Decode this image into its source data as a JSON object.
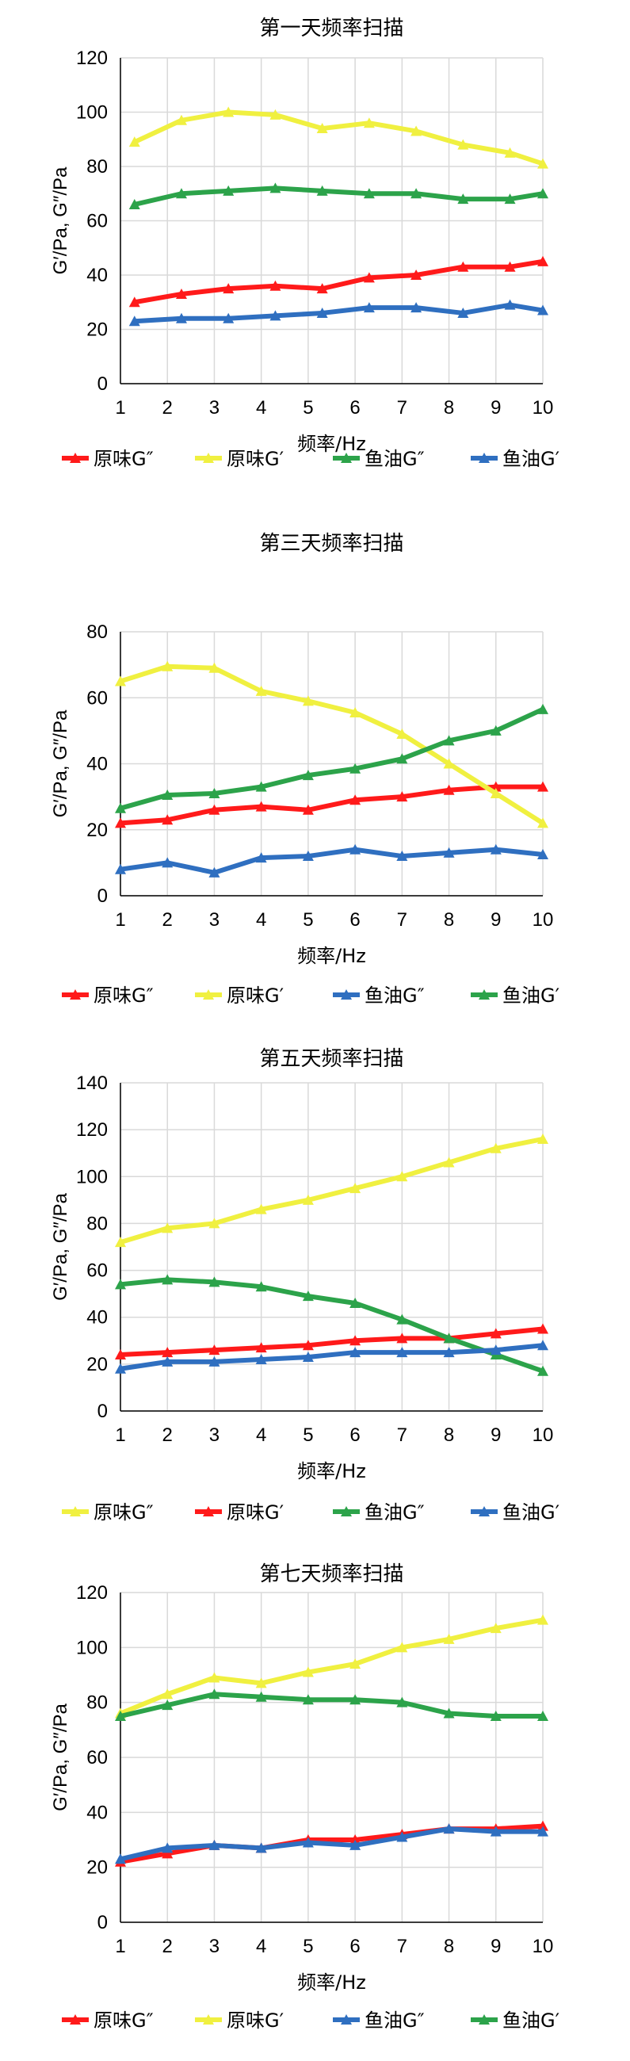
{
  "chart_data": [
    {
      "type": "line",
      "title": "第一天频率扫描",
      "xlabel": "频率/Hz",
      "ylabel": "G′/Pa, G″/Pa",
      "xlim": [
        1,
        10
      ],
      "ylim": [
        0,
        120
      ],
      "ytick_step": 20,
      "x": [
        1.3,
        2.3,
        3.3,
        4.3,
        5.3,
        6.3,
        7.3,
        8.3,
        9.3,
        10
      ],
      "grid": true,
      "legend_position": "bottom",
      "series": [
        {
          "name": "原味G″",
          "color": "#ff1a1a",
          "values": [
            30,
            33,
            35,
            36,
            35,
            39,
            40,
            43,
            43,
            45
          ]
        },
        {
          "name": "原味G′",
          "color": "#f0f040",
          "values": [
            89,
            97,
            100,
            99,
            94,
            96,
            93,
            88,
            85,
            81
          ]
        },
        {
          "name": "鱼油G″",
          "color": "#2ca34a",
          "values": [
            66,
            70,
            71,
            72,
            71,
            70,
            70,
            68,
            68,
            70
          ]
        },
        {
          "name": "鱼油G′",
          "color": "#2f6fc0",
          "values": [
            23,
            24,
            24,
            25,
            26,
            28,
            28,
            26,
            29,
            27
          ]
        }
      ]
    },
    {
      "type": "line",
      "title": "第三天频率扫描",
      "xlabel": "频率/Hz",
      "ylabel": "G′/Pa, G″/Pa",
      "xlim": [
        1,
        10
      ],
      "ylim": [
        0,
        80
      ],
      "ytick_step": 20,
      "x": [
        1,
        2,
        3,
        4,
        5,
        6,
        7,
        8,
        9,
        10
      ],
      "grid": true,
      "legend_position": "bottom",
      "series": [
        {
          "name": "原味G″",
          "color": "#ff1a1a",
          "values": [
            22,
            23,
            26,
            27,
            26,
            29,
            30,
            32,
            33,
            33
          ]
        },
        {
          "name": "原味G′",
          "color": "#f0f040",
          "values": [
            65,
            69.5,
            69,
            62,
            59,
            55.5,
            49,
            40,
            31,
            22
          ]
        },
        {
          "name": "鱼油G″",
          "color": "#2f6fc0",
          "values": [
            8,
            10,
            7,
            11.5,
            12,
            14,
            12,
            13,
            14,
            12.5
          ]
        },
        {
          "name": "鱼油G′",
          "color": "#2ca34a",
          "values": [
            26.5,
            30.5,
            31,
            33,
            36.5,
            38.5,
            41.5,
            47,
            50,
            56.5
          ]
        }
      ]
    },
    {
      "type": "line",
      "title": "第五天频率扫描",
      "xlabel": "频率/Hz",
      "ylabel": "G′/Pa, G″/Pa",
      "xlim": [
        1,
        10
      ],
      "ylim": [
        0,
        140
      ],
      "ytick_step": 20,
      "x": [
        1,
        2,
        3,
        4,
        5,
        6,
        7,
        8,
        9,
        10
      ],
      "grid": true,
      "legend_position": "bottom",
      "series": [
        {
          "name": "原味G″",
          "color": "#f0f040",
          "values": [
            72,
            78,
            80,
            86,
            90,
            95,
            100,
            106,
            112,
            116
          ]
        },
        {
          "name": "原味G′",
          "color": "#ff1a1a",
          "values": [
            24,
            25,
            26,
            27,
            28,
            30,
            31,
            31,
            33,
            35
          ]
        },
        {
          "name": "鱼油G″",
          "color": "#2ca34a",
          "values": [
            54,
            56,
            55,
            53,
            49,
            46,
            39,
            31,
            24,
            17
          ]
        },
        {
          "name": "鱼油G′",
          "color": "#2f6fc0",
          "values": [
            18,
            21,
            21,
            22,
            23,
            25,
            25,
            25,
            26,
            28
          ]
        }
      ]
    },
    {
      "type": "line",
      "title": "第七天频率扫描",
      "xlabel": "频率/Hz",
      "ylabel": "G′/Pa, G″/Pa",
      "xlim": [
        1,
        10
      ],
      "ylim": [
        0,
        120
      ],
      "ytick_step": 20,
      "x": [
        1,
        2,
        3,
        4,
        5,
        6,
        7,
        8,
        9,
        10
      ],
      "grid": true,
      "legend_position": "bottom",
      "series": [
        {
          "name": "原味G″",
          "color": "#ff1a1a",
          "values": [
            22,
            25,
            28,
            27,
            30,
            30,
            32,
            34,
            34,
            35
          ]
        },
        {
          "name": "原味G′",
          "color": "#f0f040",
          "values": [
            76,
            83,
            89,
            87,
            91,
            94,
            100,
            103,
            107,
            110
          ]
        },
        {
          "name": "鱼油G″",
          "color": "#2f6fc0",
          "values": [
            23,
            27,
            28,
            27,
            29,
            28,
            31,
            34,
            33,
            33
          ]
        },
        {
          "name": "鱼油G′",
          "color": "#2ca34a",
          "values": [
            75,
            79,
            83,
            82,
            81,
            81,
            80,
            76,
            75,
            75
          ]
        }
      ]
    }
  ]
}
